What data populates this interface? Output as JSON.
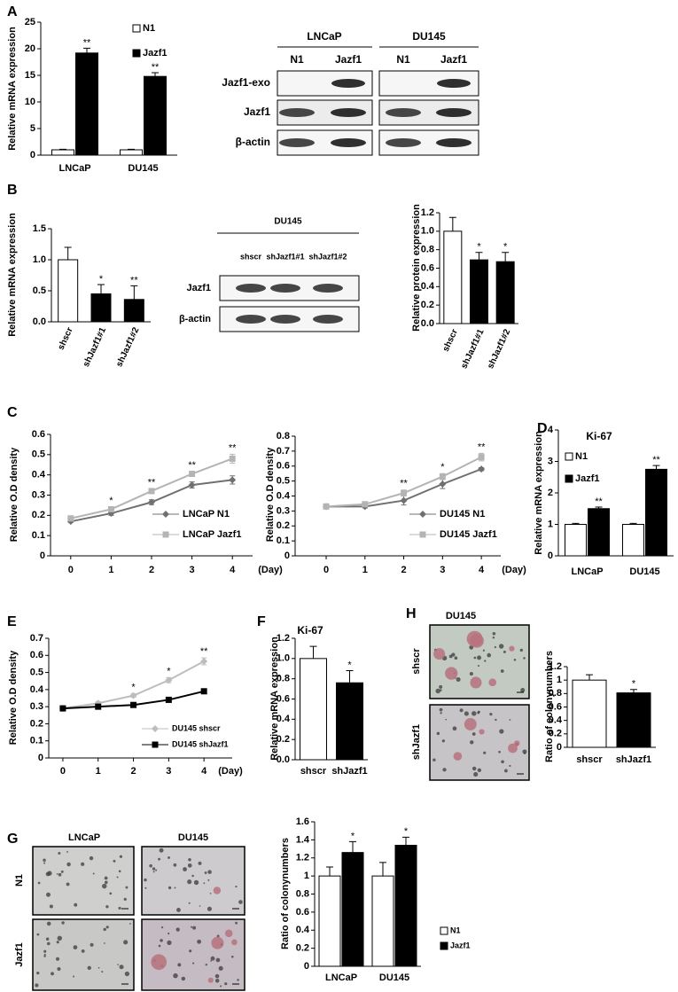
{
  "panel_labels": [
    "A",
    "B",
    "C",
    "D",
    "E",
    "F",
    "G",
    "H"
  ],
  "blots": [
    {
      "groups": [
        "LNCaP",
        "DU145"
      ],
      "lanes": [
        "N1",
        "Jazf1",
        "N1",
        "Jazf1"
      ],
      "rows": [
        "Jazf1-exo",
        "Jazf1",
        "β-actin"
      ]
    },
    {
      "title": "DU145",
      "lanes": [
        "shscr",
        "shJazf1#1",
        "shJazf1#2"
      ],
      "rows": [
        "Jazf1",
        "β-actin"
      ]
    }
  ],
  "micrographs": [
    {
      "title": "DU145",
      "rows": [
        "shscr",
        "shJazf1"
      ]
    },
    {
      "columns": [
        "LNCaP",
        "DU145"
      ],
      "rows": [
        "N1",
        "Jazf1"
      ]
    }
  ],
  "chart_data": [
    {
      "type": "bar",
      "y_label": "Relative mRNA expression",
      "categories": [
        "LNCaP",
        "DU145"
      ],
      "series": [
        {
          "name": "N1",
          "color": "#ffffff",
          "values": [
            1,
            1
          ],
          "errors": [
            0.1,
            0.1
          ]
        },
        {
          "name": "Jazf1",
          "color": "#000000",
          "values": [
            19.2,
            14.8
          ],
          "errors": [
            0.9,
            0.7
          ],
          "significance": [
            "**",
            "**"
          ]
        }
      ],
      "ylim": [
        0,
        25
      ],
      "yticks": [
        0,
        5,
        10,
        15,
        20,
        25
      ]
    },
    {
      "type": "bar",
      "y_label": "Relative mRNA expression",
      "categories": [
        "shscr",
        "shJazf1#1",
        "shJazf1#2"
      ],
      "values": [
        1.0,
        0.45,
        0.36
      ],
      "errors": [
        0.2,
        0.15,
        0.22
      ],
      "colors": [
        "#ffffff",
        "#000000",
        "#000000"
      ],
      "significance": [
        null,
        "*",
        "**"
      ],
      "ylim": [
        0,
        1.5
      ],
      "yticks": [
        {
          "value": 0,
          "label": "0.0"
        },
        0.5,
        {
          "value": 1,
          "label": "1.0"
        },
        1.5
      ]
    },
    {
      "type": "bar",
      "y_label": "Relative protein expression",
      "categories": [
        "shscr",
        "shJazf1#1",
        "shJazf1#2"
      ],
      "values": [
        1.0,
        0.69,
        0.67
      ],
      "errors": [
        0.15,
        0.08,
        0.1
      ],
      "colors": [
        "#ffffff",
        "#000000",
        "#000000"
      ],
      "significance": [
        null,
        "*",
        "*"
      ],
      "ylim": [
        0,
        1.2
      ],
      "yticks": [
        {
          "value": 0,
          "label": "0.0"
        },
        0.2,
        0.4,
        0.6,
        0.8,
        {
          "value": 1,
          "label": "1.0"
        },
        1.2
      ]
    },
    {
      "type": "line",
      "y_label": "Relative O.D density",
      "x_label": "(Day)",
      "x": [
        0,
        1,
        2,
        3,
        4
      ],
      "series": [
        {
          "name": "LNCaP N1",
          "color": "#707070",
          "marker": "diamond",
          "values": [
            0.17,
            0.21,
            0.265,
            0.35,
            0.375
          ],
          "errors": [
            0.005,
            0.01,
            0.012,
            0.015,
            0.02
          ]
        },
        {
          "name": "LNCaP Jazf1",
          "color": "#b4b4b4",
          "marker": "square",
          "values": [
            0.185,
            0.23,
            0.32,
            0.405,
            0.48
          ],
          "errors": [
            0.005,
            0.01,
            0.01,
            0.01,
            0.022
          ]
        }
      ],
      "significance": [
        null,
        "*",
        "**",
        "**",
        "**"
      ],
      "xlim": [
        -0.5,
        4.5
      ],
      "xticks": [
        0,
        1,
        2,
        3,
        4
      ],
      "ylim": [
        0,
        0.6
      ],
      "yticks": [
        0,
        0.1,
        0.2,
        0.3,
        0.4,
        0.5,
        0.6
      ]
    },
    {
      "type": "line",
      "y_label": "Relative O.D density",
      "x_label": "(Day)",
      "x": [
        0,
        1,
        2,
        3,
        4
      ],
      "series": [
        {
          "name": "DU145 N1",
          "color": "#707070",
          "marker": "diamond",
          "values": [
            0.33,
            0.33,
            0.37,
            0.48,
            0.58
          ],
          "errors": [
            0.01,
            0.01,
            0.03,
            0.03,
            0.01
          ]
        },
        {
          "name": "DU145 Jazf1",
          "color": "#b4b4b4",
          "marker": "square",
          "values": [
            0.33,
            0.345,
            0.42,
            0.53,
            0.66
          ],
          "errors": [
            0.01,
            0.01,
            0.02,
            0.02,
            0.025
          ]
        }
      ],
      "significance": [
        null,
        null,
        "**",
        "*",
        "**"
      ],
      "xlim": [
        -0.8,
        4.5
      ],
      "xticks": [
        0,
        1,
        2,
        3,
        4
      ],
      "ylim": [
        0,
        0.8
      ],
      "yticks": [
        0,
        0.1,
        0.2,
        0.3,
        0.4,
        0.5,
        0.6,
        0.7,
        0.8
      ]
    },
    {
      "type": "bar",
      "title": "Ki-67",
      "y_label": "Relative mRNA expression",
      "categories": [
        "LNCaP",
        "DU145"
      ],
      "series": [
        {
          "name": "N1",
          "color": "#ffffff",
          "values": [
            1,
            1
          ],
          "errors": [
            0.03,
            0.03
          ]
        },
        {
          "name": "Jazf1",
          "color": "#000000",
          "values": [
            1.5,
            2.75
          ],
          "errors": [
            0.05,
            0.12
          ],
          "significance": [
            "**",
            "**"
          ]
        }
      ],
      "ylim": [
        0,
        4
      ],
      "yticks": [
        0,
        1,
        2,
        3,
        4
      ]
    },
    {
      "type": "line",
      "y_label": "Relative O.D density",
      "x_label": "(Day)",
      "x": [
        0,
        1,
        2,
        3,
        4
      ],
      "series": [
        {
          "name": "DU145 shscr",
          "color": "#bdbdbd",
          "marker": "diamond",
          "values": [
            0.29,
            0.32,
            0.365,
            0.455,
            0.565
          ],
          "errors": [
            0.01,
            0.01,
            0.01,
            0.015,
            0.02
          ]
        },
        {
          "name": "DU145 shJazf1",
          "color": "#000000",
          "marker": "square",
          "values": [
            0.29,
            0.3,
            0.31,
            0.34,
            0.39
          ],
          "errors": [
            0.01,
            0.01,
            0.01,
            0.01,
            0.01
          ]
        }
      ],
      "significance": [
        null,
        null,
        "*",
        "*",
        "**"
      ],
      "xlim": [
        -0.4,
        4.8
      ],
      "xticks": [
        0,
        1,
        2,
        3,
        4
      ],
      "ylim": [
        0,
        0.7
      ],
      "yticks": [
        0,
        0.1,
        0.2,
        0.3,
        0.4,
        0.5,
        0.6,
        0.7
      ]
    },
    {
      "type": "bar",
      "title": "Ki-67",
      "y_label": "Relative mRNA expression",
      "categories": [
        "shscr",
        "shJazf1"
      ],
      "values": [
        1.0,
        0.76
      ],
      "errors": [
        0.12,
        0.12
      ],
      "colors": [
        "#ffffff",
        "#000000"
      ],
      "significance": [
        null,
        "*"
      ],
      "ylim": [
        0,
        1.2
      ],
      "yticks": [
        {
          "value": 0,
          "label": "0.0"
        },
        0.2,
        0.4,
        0.6,
        0.8,
        {
          "value": 1,
          "label": "1.0"
        },
        1.2
      ]
    },
    {
      "type": "bar",
      "y_label": "Ratio of colonynumbers",
      "categories": [
        "shscr",
        "shJazf1"
      ],
      "values": [
        1.0,
        0.81
      ],
      "errors": [
        0.08,
        0.05
      ],
      "colors": [
        "#ffffff",
        "#000000"
      ],
      "significance": [
        null,
        "*"
      ],
      "ylim": [
        0,
        1.2
      ],
      "yticks": [
        0,
        0.2,
        0.4,
        0.6,
        0.8,
        1,
        1.2
      ]
    },
    {
      "type": "bar",
      "y_label": "Ratio of colonynumbers",
      "categories": [
        "LNCaP",
        "DU145"
      ],
      "series": [
        {
          "name": "N1",
          "color": "#ffffff",
          "values": [
            1,
            1
          ],
          "errors": [
            0.1,
            0.15
          ]
        },
        {
          "name": "Jazf1",
          "color": "#000000",
          "values": [
            1.26,
            1.34
          ],
          "errors": [
            0.12,
            0.09
          ],
          "significance": [
            "*",
            "*"
          ]
        }
      ],
      "ylim": [
        0,
        1.6
      ],
      "yticks": [
        0,
        0.2,
        0.4,
        0.6,
        0.8,
        1,
        1.2,
        1.4,
        1.6
      ]
    }
  ]
}
